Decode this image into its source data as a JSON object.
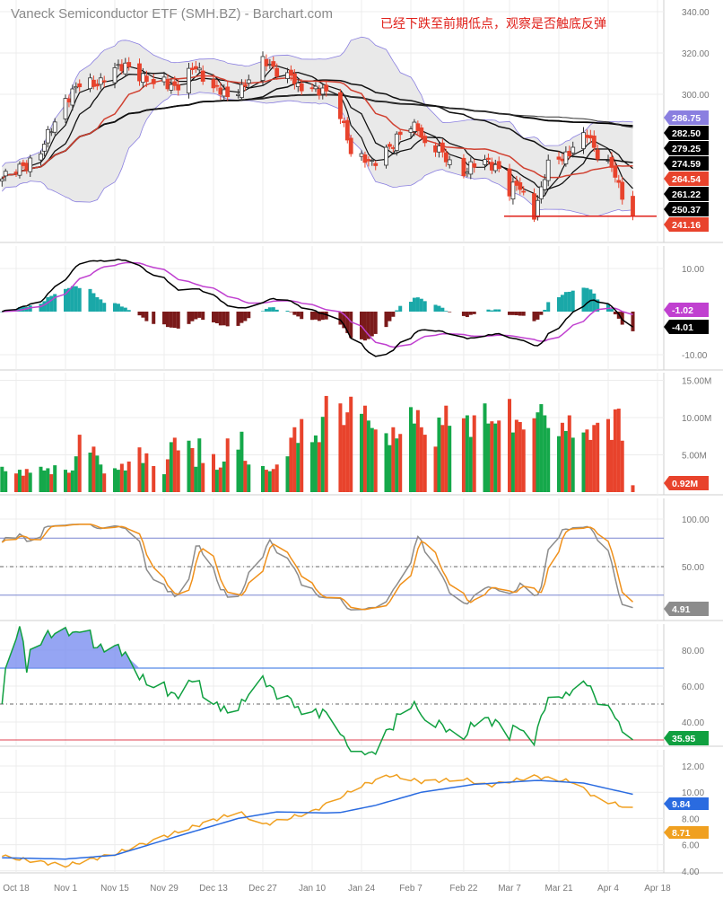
{
  "title": "Vaneck Semiconductor ETF (SMH.BZ) - Barchart.com",
  "annotation": "已经下跌至前期低点，观察是否触底反弹",
  "colors": {
    "up": "#ffffff",
    "down": "#e8432c",
    "bb": "#8a7fe0",
    "ma20": "#d04030",
    "macd_pos": "#1aa8a8",
    "macd_neg": "#7a1a1a",
    "signal": "#c040d0",
    "stoch_k": "#8c8c8c",
    "stoch_d": "#f0901a",
    "rsi": "#10a040",
    "blue": "#2a6be0",
    "orange": "#f0a020",
    "support": "#e0201a"
  },
  "chart_data": [
    {
      "type": "candlestick",
      "panel": "price",
      "y_ticks": [
        "340.00",
        "320.00",
        "300.00"
      ],
      "ylim": [
        230,
        345
      ],
      "close_by_date": [
        [
          "2021-10-14",
          259
        ],
        [
          "2021-10-18",
          263
        ],
        [
          "2021-10-25",
          272
        ],
        [
          "2021-11-01",
          298
        ],
        [
          "2021-11-05",
          304
        ],
        [
          "2021-11-10",
          306
        ],
        [
          "2021-11-15",
          311
        ],
        [
          "2021-11-19",
          315
        ],
        [
          "2021-11-22",
          309
        ],
        [
          "2021-11-26",
          304
        ],
        [
          "2021-11-29",
          306
        ],
        [
          "2021-12-03",
          304
        ],
        [
          "2021-12-08",
          313
        ],
        [
          "2021-12-13",
          304
        ],
        [
          "2021-12-17",
          298
        ],
        [
          "2021-12-21",
          304
        ],
        [
          "2021-12-27",
          315
        ],
        [
          "2021-12-30",
          313
        ],
        [
          "2022-01-04",
          309
        ],
        [
          "2022-01-06",
          302
        ],
        [
          "2022-01-10",
          304
        ],
        [
          "2022-01-13",
          302
        ],
        [
          "2022-01-18",
          289
        ],
        [
          "2022-01-21",
          274
        ],
        [
          "2022-01-24",
          270
        ],
        [
          "2022-01-27",
          265
        ],
        [
          "2022-01-31",
          274
        ],
        [
          "2022-02-04",
          280
        ],
        [
          "2022-02-09",
          285
        ],
        [
          "2022-02-11",
          276
        ],
        [
          "2022-02-14",
          274
        ],
        [
          "2022-02-18",
          267
        ],
        [
          "2022-02-22",
          263
        ],
        [
          "2022-02-24",
          265
        ],
        [
          "2022-03-01",
          267
        ],
        [
          "2022-03-04",
          265
        ],
        [
          "2022-03-07",
          252
        ],
        [
          "2022-03-09",
          256
        ],
        [
          "2022-03-11",
          252
        ],
        [
          "2022-03-14",
          243
        ],
        [
          "2022-03-16",
          254
        ],
        [
          "2022-03-18",
          265
        ],
        [
          "2022-03-22",
          270
        ],
        [
          "2022-03-25",
          274
        ],
        [
          "2022-03-29",
          280
        ],
        [
          "2022-04-01",
          272
        ],
        [
          "2022-04-05",
          265
        ],
        [
          "2022-04-07",
          254
        ],
        [
          "2022-04-11",
          241.16
        ]
      ],
      "overlays": [
        "Bollinger Bands (20,2)",
        "SMA 5",
        "SMA 10",
        "SMA 20",
        "SMA 50",
        "SMA 100",
        "SMA 200"
      ],
      "support_level": 241,
      "right_labels": [
        {
          "text": "286.75",
          "color": "#8a7fe0"
        },
        {
          "text": "282.50",
          "color": "#000000"
        },
        {
          "text": "279.25",
          "color": "#000000"
        },
        {
          "text": "274.59",
          "color": "#000000"
        },
        {
          "text": "264.54",
          "color": "#e8432c"
        },
        {
          "text": "261.22",
          "color": "#000000"
        },
        {
          "text": "250.37",
          "color": "#000000"
        },
        {
          "text": "241.16",
          "color": "#e8432c"
        }
      ]
    },
    {
      "type": "bar+line",
      "panel": "macd",
      "y_ticks": [
        "10.00",
        "-10.00"
      ],
      "ylim": [
        -12,
        12
      ],
      "right_labels": [
        {
          "text": "-1.02",
          "color": "#c040d0"
        },
        {
          "text": "-4.01",
          "color": "#000000"
        }
      ]
    },
    {
      "type": "bar",
      "panel": "volume",
      "y_ticks": [
        "15.00M",
        "10.00M",
        "5.00M"
      ],
      "ylim": [
        0,
        16
      ],
      "values_millions": [
        3.4,
        2.8,
        2.5,
        3.0,
        2.2,
        3.1,
        2.6,
        3.4,
        2.9,
        3.2,
        2.4,
        3.6,
        3.0,
        2.6,
        2.9,
        4.8,
        7.7,
        5.3,
        6.1,
        4.9,
        3.7,
        2.5,
        3.2,
        3.0,
        3.8,
        2.9,
        4.1,
        6.0,
        3.9,
        5.2,
        3.5,
        2.4,
        4.4,
        6.7,
        7.3,
        5.6,
        6.9,
        5.9,
        3.4,
        7.2,
        3.9,
        5.1,
        3.0,
        3.3,
        4.1,
        7.2,
        5.7,
        8.1,
        4.2,
        3.7,
        3.5,
        3.0,
        2.8,
        3.1,
        3.7,
        4.8,
        7.3,
        8.7,
        6.6,
        9.8,
        6.7,
        7.6,
        6.7,
        10.1,
        12.9,
        11.9,
        9.0,
        10.7,
        12.8,
        10.5,
        11.6,
        9.6,
        8.6,
        8.4,
        7.9,
        6.3,
        8.7,
        7.2,
        7.8,
        11.4,
        9.2,
        11.0,
        8.7,
        7.7,
        6.1,
        10.0,
        9.0,
        11.6,
        8.9,
        9.9,
        10.3,
        7.4,
        10.3,
        11.9,
        9.2,
        9.5,
        9.2,
        9.6,
        12.5,
        8.0,
        9.7,
        9.4,
        8.4,
        9.9,
        10.7,
        11.8,
        10.3,
        8.6,
        7.5,
        9.3,
        8.2,
        10.3,
        7.3,
        8.0,
        8.4,
        7.0,
        9.0,
        9.3,
        9.8,
        7.0,
        11.1,
        11.2,
        6.9,
        0.92
      ],
      "right_labels": [
        {
          "text": "0.92M",
          "color": "#e8432c"
        }
      ]
    },
    {
      "type": "line",
      "panel": "stochastic",
      "y_ticks": [
        "100.00",
        "50.00"
      ],
      "ylim": [
        0,
        105
      ],
      "levels": [
        80,
        50,
        20
      ],
      "right_labels": [
        {
          "text": "4.91",
          "color": "#8c8c8c"
        }
      ]
    },
    {
      "type": "line",
      "panel": "rsi",
      "y_ticks": [
        "80.00",
        "60.00",
        "40.00"
      ],
      "ylim": [
        25,
        95
      ],
      "levels": [
        70,
        50,
        30
      ],
      "right_labels": [
        {
          "text": "35.95",
          "color": "#10a040"
        }
      ]
    },
    {
      "type": "line",
      "panel": "lower",
      "y_ticks": [
        "12.00",
        "10.00",
        "8.00",
        "6.00",
        "4.00"
      ],
      "ylim": [
        4,
        13
      ],
      "series": [
        {
          "color": "#f0a020",
          "points": [
            [
              "2021-10-14",
              5.1
            ],
            [
              "2021-11-01",
              4.4
            ],
            [
              "2021-11-15",
              5.3
            ],
            [
              "2021-12-01",
              6.8
            ],
            [
              "2021-12-20",
              8.5
            ],
            [
              "2021-12-27",
              7.5
            ],
            [
              "2022-01-10",
              8.5
            ],
            [
              "2022-01-24",
              10.5
            ],
            [
              "2022-02-01",
              11.3
            ],
            [
              "2022-02-10",
              10.8
            ],
            [
              "2022-02-22",
              11.0
            ],
            [
              "2022-03-01",
              10.5
            ],
            [
              "2022-03-14",
              11.2
            ],
            [
              "2022-03-25",
              10.8
            ],
            [
              "2022-04-01",
              9.5
            ],
            [
              "2022-04-11",
              8.71
            ]
          ]
        },
        {
          "color": "#2a6be0",
          "points": [
            [
              "2021-10-14",
              5.0
            ],
            [
              "2021-11-01",
              4.9
            ],
            [
              "2021-11-15",
              5.2
            ],
            [
              "2021-12-01",
              6.5
            ],
            [
              "2021-12-20",
              8.0
            ],
            [
              "2021-12-31",
              8.5
            ],
            [
              "2022-01-17",
              8.4
            ],
            [
              "2022-01-28",
              9.0
            ],
            [
              "2022-02-10",
              10.0
            ],
            [
              "2022-02-25",
              10.6
            ],
            [
              "2022-03-15",
              10.9
            ],
            [
              "2022-03-28",
              10.7
            ],
            [
              "2022-04-11",
              9.84
            ]
          ]
        }
      ],
      "right_labels": [
        {
          "text": "9.84",
          "color": "#2a6be0"
        },
        {
          "text": "8.71",
          "color": "#f0a020"
        }
      ]
    }
  ],
  "x_ticks": [
    [
      "Oct 18",
      "2021-10-18"
    ],
    [
      "Nov 1",
      "2021-11-01"
    ],
    [
      "Nov 15",
      "2021-11-15"
    ],
    [
      "Nov 29",
      "2021-11-29"
    ],
    [
      "Dec 13",
      "2021-12-13"
    ],
    [
      "Dec 27",
      "2021-12-27"
    ],
    [
      "Jan 10",
      "2022-01-10"
    ],
    [
      "Jan 24",
      "2022-01-24"
    ],
    [
      "Feb 7",
      "2022-02-07"
    ],
    [
      "Feb 22",
      "2022-02-22"
    ],
    [
      "Mar 7",
      "2022-03-07"
    ],
    [
      "Mar 21",
      "2022-03-21"
    ],
    [
      "Apr 4",
      "2022-04-04"
    ],
    [
      "Apr 18",
      "2022-04-18"
    ]
  ]
}
